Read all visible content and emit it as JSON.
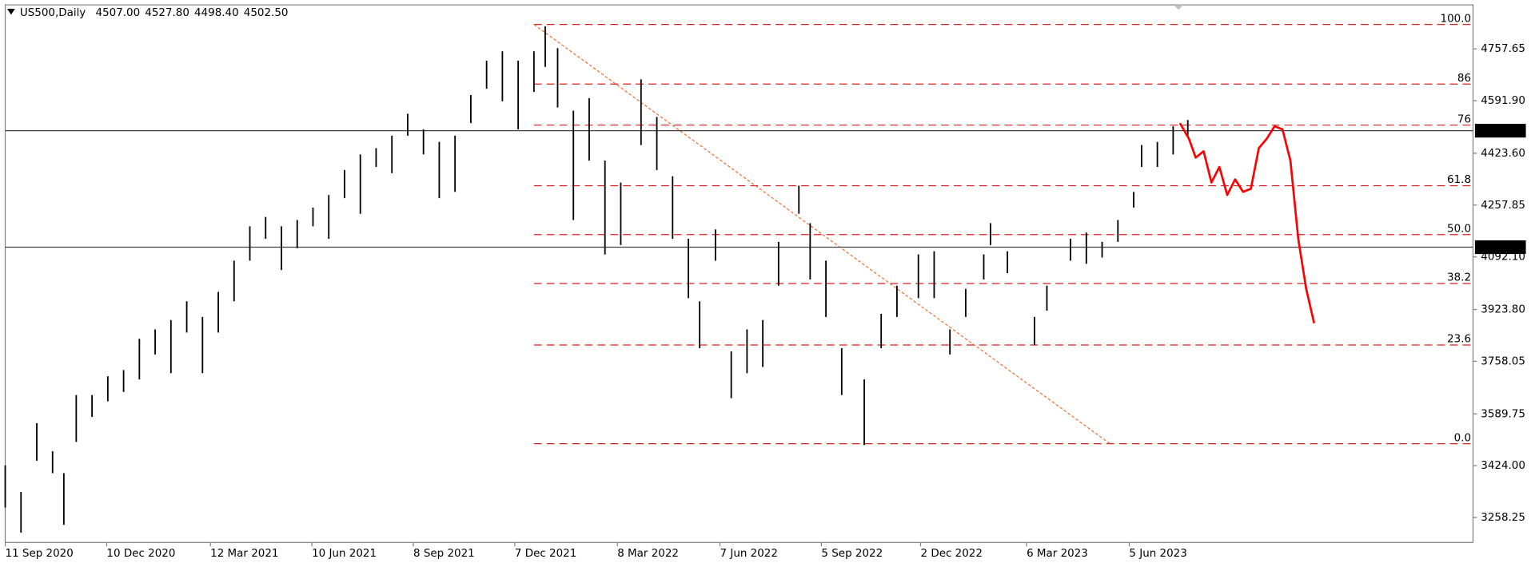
{
  "chart_data": {
    "type": "ohlc",
    "symbol": "US500,Daily",
    "header_prices": [
      {
        "value": 4507,
        "label": "4507.00"
      },
      {
        "value": 4527.8,
        "label": "4527.80"
      },
      {
        "value": 4498.4,
        "label": "4498.40"
      },
      {
        "value": 4502.5,
        "label": "4502.50"
      }
    ],
    "color": "#000000",
    "x": [
      "2020-09-11",
      "2020-09-25",
      "2020-10-09",
      "2020-10-23",
      "2020-11-02",
      "2020-11-13",
      "2020-11-27",
      "2020-12-11",
      "2020-12-25",
      "2021-01-08",
      "2021-01-22",
      "2021-02-05",
      "2021-02-19",
      "2021-03-05",
      "2021-03-19",
      "2021-04-02",
      "2021-04-16",
      "2021-04-30",
      "2021-05-14",
      "2021-05-28",
      "2021-06-11",
      "2021-06-25",
      "2021-07-09",
      "2021-07-23",
      "2021-08-06",
      "2021-08-20",
      "2021-09-03",
      "2021-09-17",
      "2021-10-01",
      "2021-10-15",
      "2021-10-29",
      "2021-11-12",
      "2021-11-26",
      "2021-12-10",
      "2021-12-24",
      "2022-01-03",
      "2022-01-14",
      "2022-01-28",
      "2022-02-11",
      "2022-02-25",
      "2022-03-11",
      "2022-03-29",
      "2022-04-12",
      "2022-04-26",
      "2022-05-10",
      "2022-05-20",
      "2022-06-03",
      "2022-06-17",
      "2022-07-01",
      "2022-07-15",
      "2022-07-29",
      "2022-08-16",
      "2022-08-26",
      "2022-09-09",
      "2022-09-23",
      "2022-10-13",
      "2022-10-28",
      "2022-11-11",
      "2022-11-30",
      "2022-12-14",
      "2022-12-28",
      "2023-01-11",
      "2023-01-27",
      "2023-02-02",
      "2023-02-17",
      "2023-03-13",
      "2023-03-24",
      "2023-04-14",
      "2023-04-28",
      "2023-05-12",
      "2023-05-26",
      "2023-06-09",
      "2023-06-16",
      "2023-06-30",
      "2023-07-14",
      "2023-07-27"
    ],
    "high": [
      3425,
      3340,
      3560,
      3470,
      3400,
      3650,
      3650,
      3710,
      3730,
      3830,
      3860,
      3890,
      3950,
      3900,
      3980,
      4080,
      4190,
      4220,
      4190,
      4210,
      4250,
      4290,
      4370,
      4420,
      4440,
      4480,
      4550,
      4500,
      4460,
      4480,
      4610,
      4720,
      4750,
      4720,
      4750,
      4830,
      4760,
      4560,
      4600,
      4400,
      4330,
      4660,
      4540,
      4350,
      4150,
      3950,
      4180,
      3790,
      3860,
      3890,
      4140,
      4320,
      4200,
      4080,
      3800,
      3700,
      3910,
      4000,
      4100,
      4110,
      3860,
      3990,
      4100,
      4200,
      4110,
      3900,
      4000,
      4150,
      4170,
      4140,
      4210,
      4300,
      4450,
      4460,
      4510,
      4530
    ],
    "low": [
      3290,
      3210,
      3440,
      3400,
      3235,
      3500,
      3580,
      3630,
      3660,
      3700,
      3780,
      3720,
      3850,
      3720,
      3850,
      3950,
      4080,
      4150,
      4050,
      4120,
      4190,
      4150,
      4280,
      4230,
      4380,
      4360,
      4480,
      4420,
      4280,
      4300,
      4520,
      4630,
      4590,
      4500,
      4620,
      4700,
      4570,
      4210,
      4400,
      4100,
      4130,
      4450,
      4370,
      4150,
      3960,
      3800,
      4080,
      3640,
      3720,
      3740,
      4000,
      4230,
      4020,
      3900,
      3650,
      3490,
      3800,
      3900,
      3960,
      3960,
      3780,
      3900,
      4020,
      4130,
      4040,
      3810,
      3920,
      4080,
      4070,
      4090,
      4140,
      4250,
      4380,
      4380,
      4420,
      4480
    ],
    "projection": {
      "color": "#ff0000",
      "x": [
        "2023-07-20",
        "2023-07-28",
        "2023-08-03",
        "2023-08-10",
        "2023-08-17",
        "2023-08-24",
        "2023-08-31",
        "2023-09-07",
        "2023-09-14",
        "2023-09-21",
        "2023-09-28",
        "2023-10-05",
        "2023-10-12",
        "2023-10-19",
        "2023-10-26",
        "2023-11-02",
        "2023-11-09",
        "2023-11-16"
      ],
      "values": [
        4520,
        4470,
        4410,
        4430,
        4330,
        4380,
        4290,
        4340,
        4300,
        4310,
        4440,
        4470,
        4510,
        4500,
        4400,
        4150,
        3990,
        3880
      ]
    },
    "fib_start": "2021-12-24",
    "fib_color": "#e01e1e",
    "fib_levels": [
      {
        "label": "100.0",
        "value": 4835.8
      },
      {
        "label": "86",
        "value": 4645.1
      },
      {
        "label": "76",
        "value": 4513.7
      },
      {
        "label": "61.8",
        "value": 4319.8
      },
      {
        "label": "50.0",
        "value": 4163.4
      },
      {
        "label": "38.2",
        "value": 4007
      },
      {
        "label": "23.6",
        "value": 3810.1
      },
      {
        "label": "0.0",
        "value": 3494.2
      }
    ],
    "trendline": {
      "color": "#f07030",
      "x": [
        "2021-12-24",
        "2023-05-19"
      ],
      "values": [
        4835.8,
        3494.2
      ]
    },
    "price_lines": [
      4495.85,
      4123.08
    ],
    "xlim": [
      "2020-09-11",
      "2024-04-05"
    ],
    "xticks": [
      {
        "value": "2020-09-11",
        "label": "11 Sep 2020"
      },
      {
        "value": "2020-12-10",
        "label": "10 Dec 2020"
      },
      {
        "value": "2021-03-12",
        "label": "12 Mar 2021"
      },
      {
        "value": "2021-06-10",
        "label": "10 Jun 2021"
      },
      {
        "value": "2021-09-08",
        "label": "8 Sep 2021"
      },
      {
        "value": "2021-12-07",
        "label": "7 Dec 2021"
      },
      {
        "value": "2022-03-08",
        "label": "8 Mar 2022"
      },
      {
        "value": "2022-06-07",
        "label": "7 Jun 2022"
      },
      {
        "value": "2022-09-05",
        "label": "5 Sep 2022"
      },
      {
        "value": "2022-12-02",
        "label": "2 Dec 2022"
      },
      {
        "value": "2023-03-06",
        "label": "6 Mar 2023"
      },
      {
        "value": "2023-06-05",
        "label": "5 Jun 2023"
      }
    ],
    "ylim": [
      3178.3,
      4898.4
    ],
    "yticks": [
      {
        "value": 4757.65,
        "label": "4757.65"
      },
      {
        "value": 4591.9,
        "label": "4591.90"
      },
      {
        "value": 4423.6,
        "label": "4423.60"
      },
      {
        "value": 4257.85,
        "label": "4257.85"
      },
      {
        "value": 4092.1,
        "label": "4092.10"
      },
      {
        "value": 3923.8,
        "label": "3923.80"
      },
      {
        "value": 3758.05,
        "label": "3758.05"
      },
      {
        "value": 3589.75,
        "label": "3589.75"
      },
      {
        "value": 3424,
        "label": "3424.00"
      },
      {
        "value": 3258.25,
        "label": "3258.25"
      }
    ]
  }
}
